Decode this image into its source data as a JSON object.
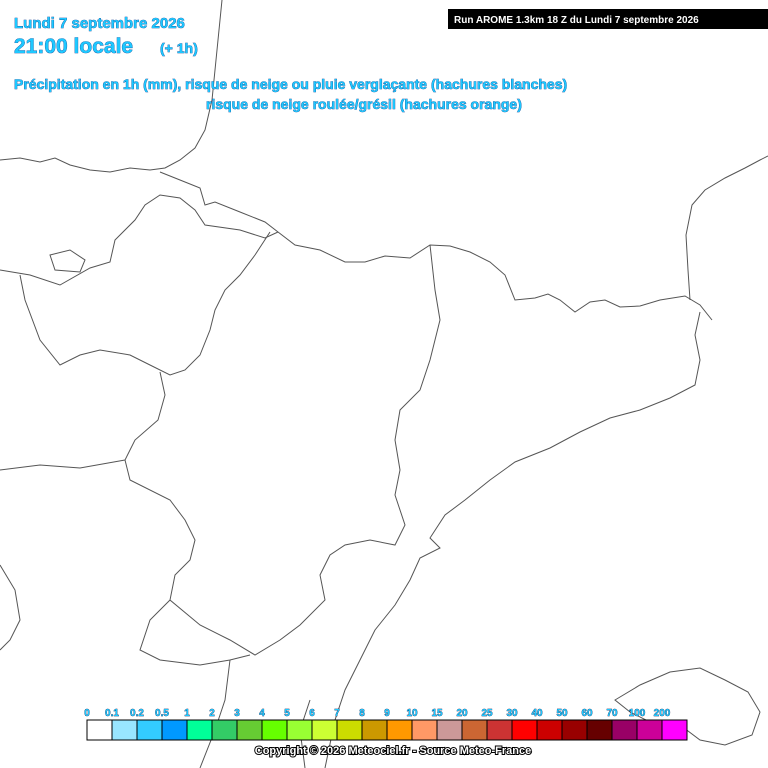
{
  "header": {
    "date": "Lundi 7 septembre 2026",
    "time": "21:00 locale",
    "offset": "(+ 1h)",
    "run": "Run AROME 1.3km 18 Z du Lundi 7 septembre 2026",
    "line1": "Précipitation en 1h (mm), risque de neige ou pluie verglaçante (hachures blanches)",
    "line2": "risque de neige roulée/grésil (hachures orange)"
  },
  "legend": {
    "labels": [
      "0",
      "0.1",
      "0.2",
      "0.5",
      "1",
      "2",
      "3",
      "4",
      "5",
      "6",
      "7",
      "8",
      "9",
      "10",
      "15",
      "20",
      "25",
      "30",
      "40",
      "50",
      "60",
      "70",
      "100",
      "200"
    ],
    "colors": [
      "#ffffff",
      "#99e6ff",
      "#33ccff",
      "#0099ff",
      "#00ff99",
      "#33cc66",
      "#66cc33",
      "#66ff00",
      "#99ff33",
      "#ccff33",
      "#ccdd00",
      "#cc9900",
      "#ff9900",
      "#ff9966",
      "#cc9999",
      "#cc6633",
      "#cc3333",
      "#ff0000",
      "#cc0000",
      "#990000",
      "#660000",
      "#990066",
      "#cc0099",
      "#ff00ff"
    ]
  },
  "footer": {
    "copyright": "Copyright © 2026 Meteociel.fr - Source Meteo-France"
  }
}
